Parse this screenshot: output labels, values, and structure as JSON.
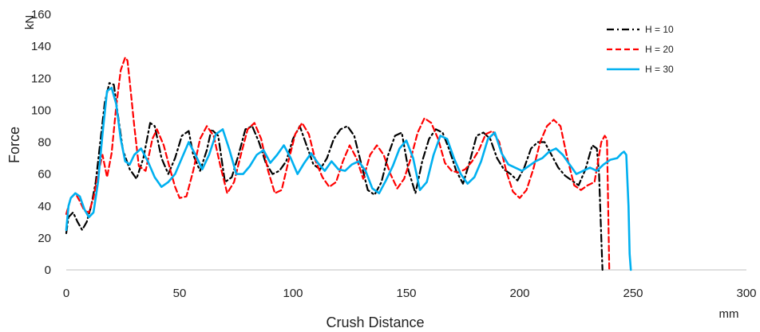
{
  "chart_data": {
    "type": "line",
    "xlabel": "Crush Distance",
    "ylabel": "Force",
    "x_unit": "mm",
    "y_unit": "kN",
    "xlim": [
      0,
      300
    ],
    "ylim": [
      0,
      160
    ],
    "x_ticks": [
      "0",
      "50",
      "100",
      "150",
      "200",
      "250",
      "300"
    ],
    "y_ticks": [
      "0",
      "20",
      "40",
      "60",
      "80",
      "100",
      "120",
      "140",
      "160"
    ],
    "grid": false,
    "legend_position": "top-right",
    "series": [
      {
        "name": "H = 10",
        "color": "#000000",
        "style": "dash-dot",
        "x": [
          0,
          1,
          3,
          5,
          7,
          9,
          11,
          13,
          15,
          17,
          19,
          21,
          23,
          25,
          28,
          31,
          34,
          37,
          39,
          42,
          45,
          48,
          51,
          54,
          56,
          59,
          62,
          64,
          67,
          70,
          73,
          76,
          79,
          82,
          85,
          88,
          91,
          94,
          97,
          100,
          103,
          106,
          109,
          112,
          115,
          118,
          121,
          124,
          127,
          130,
          133,
          136,
          139,
          142,
          145,
          148,
          151,
          154,
          157,
          160,
          163,
          166,
          169,
          172,
          175,
          178,
          181,
          184,
          187,
          190,
          193,
          196,
          199,
          202,
          205,
          208,
          211,
          214,
          217,
          220,
          223,
          226,
          229,
          232,
          234,
          235,
          236,
          236.5
        ],
        "y": [
          23,
          33,
          36,
          30,
          25,
          30,
          40,
          55,
          80,
          105,
          117,
          116,
          95,
          75,
          63,
          57,
          70,
          92,
          90,
          70,
          60,
          70,
          84,
          87,
          72,
          62,
          75,
          88,
          84,
          55,
          58,
          72,
          88,
          90,
          80,
          67,
          60,
          62,
          68,
          82,
          90,
          78,
          66,
          63,
          70,
          82,
          88,
          90,
          84,
          67,
          50,
          47,
          55,
          72,
          84,
          86,
          62,
          48,
          68,
          82,
          88,
          86,
          75,
          62,
          54,
          68,
          84,
          86,
          82,
          70,
          63,
          60,
          56,
          64,
          76,
          80,
          80,
          72,
          64,
          59,
          56,
          53,
          63,
          78,
          76,
          60,
          20,
          0
        ]
      },
      {
        "name": "H = 20",
        "color": "#ff0000",
        "style": "dash",
        "x": [
          0,
          2,
          4,
          6,
          8,
          10,
          12,
          14,
          16,
          18,
          20,
          22,
          24,
          26,
          27,
          28,
          30,
          32,
          35,
          38,
          40,
          43,
          46,
          48,
          50,
          53,
          56,
          59,
          62,
          65,
          68,
          71,
          74,
          77,
          80,
          83,
          86,
          89,
          92,
          95,
          98,
          101,
          104,
          107,
          110,
          113,
          116,
          119,
          122,
          125,
          128,
          131,
          134,
          137,
          140,
          143,
          146,
          149,
          152,
          155,
          158,
          161,
          164,
          167,
          170,
          173,
          176,
          179,
          182,
          185,
          188,
          191,
          194,
          197,
          200,
          203,
          206,
          209,
          212,
          215,
          218,
          221,
          224,
          227,
          230,
          233,
          236,
          237.5,
          238.5,
          239,
          239.5
        ],
        "y": [
          35,
          45,
          48,
          43,
          37,
          36,
          45,
          60,
          72,
          58,
          73,
          102,
          125,
          133,
          131,
          118,
          90,
          65,
          62,
          82,
          88,
          78,
          62,
          52,
          45,
          46,
          62,
          82,
          90,
          84,
          65,
          48,
          55,
          72,
          88,
          92,
          82,
          62,
          48,
          50,
          68,
          85,
          92,
          85,
          68,
          58,
          52,
          55,
          68,
          78,
          70,
          57,
          72,
          78,
          72,
          60,
          51,
          57,
          70,
          86,
          95,
          92,
          82,
          67,
          62,
          61,
          63,
          68,
          75,
          85,
          87,
          80,
          62,
          49,
          45,
          50,
          63,
          80,
          90,
          94,
          90,
          70,
          53,
          50,
          53,
          55,
          80,
          84,
          82,
          40,
          0
        ]
      },
      {
        "name": "H = 30",
        "color": "#00b0f0",
        "style": "solid",
        "x": [
          0,
          1,
          2,
          4,
          6,
          8,
          10,
          12,
          14,
          16,
          18,
          20,
          22,
          24,
          26,
          28,
          30,
          33,
          36,
          39,
          42,
          45,
          48,
          51,
          54,
          57,
          60,
          63,
          66,
          69,
          72,
          75,
          78,
          81,
          84,
          87,
          90,
          93,
          96,
          99,
          102,
          105,
          108,
          111,
          114,
          117,
          120,
          123,
          126,
          129,
          132,
          135,
          138,
          141,
          144,
          147,
          150,
          153,
          156,
          159,
          162,
          165,
          168,
          171,
          174,
          177,
          180,
          183,
          186,
          189,
          192,
          195,
          198,
          201,
          204,
          207,
          210,
          213,
          216,
          219,
          222,
          225,
          228,
          231,
          234,
          237,
          240,
          243,
          245,
          246,
          247,
          248,
          248.5,
          249
        ],
        "y": [
          25,
          40,
          45,
          48,
          46,
          38,
          33,
          36,
          55,
          85,
          112,
          114,
          104,
          82,
          68,
          66,
          72,
          76,
          68,
          58,
          52,
          55,
          60,
          70,
          80,
          72,
          63,
          72,
          85,
          88,
          75,
          60,
          60,
          65,
          72,
          75,
          67,
          72,
          78,
          70,
          60,
          67,
          73,
          67,
          62,
          68,
          63,
          62,
          66,
          68,
          62,
          51,
          48,
          56,
          65,
          76,
          81,
          70,
          50,
          55,
          72,
          84,
          82,
          70,
          60,
          54,
          58,
          68,
          82,
          86,
          73,
          66,
          64,
          62,
          65,
          68,
          70,
          74,
          76,
          72,
          66,
          60,
          62,
          64,
          62,
          66,
          69,
          70,
          73,
          74,
          72,
          40,
          10,
          0
        ]
      }
    ]
  }
}
